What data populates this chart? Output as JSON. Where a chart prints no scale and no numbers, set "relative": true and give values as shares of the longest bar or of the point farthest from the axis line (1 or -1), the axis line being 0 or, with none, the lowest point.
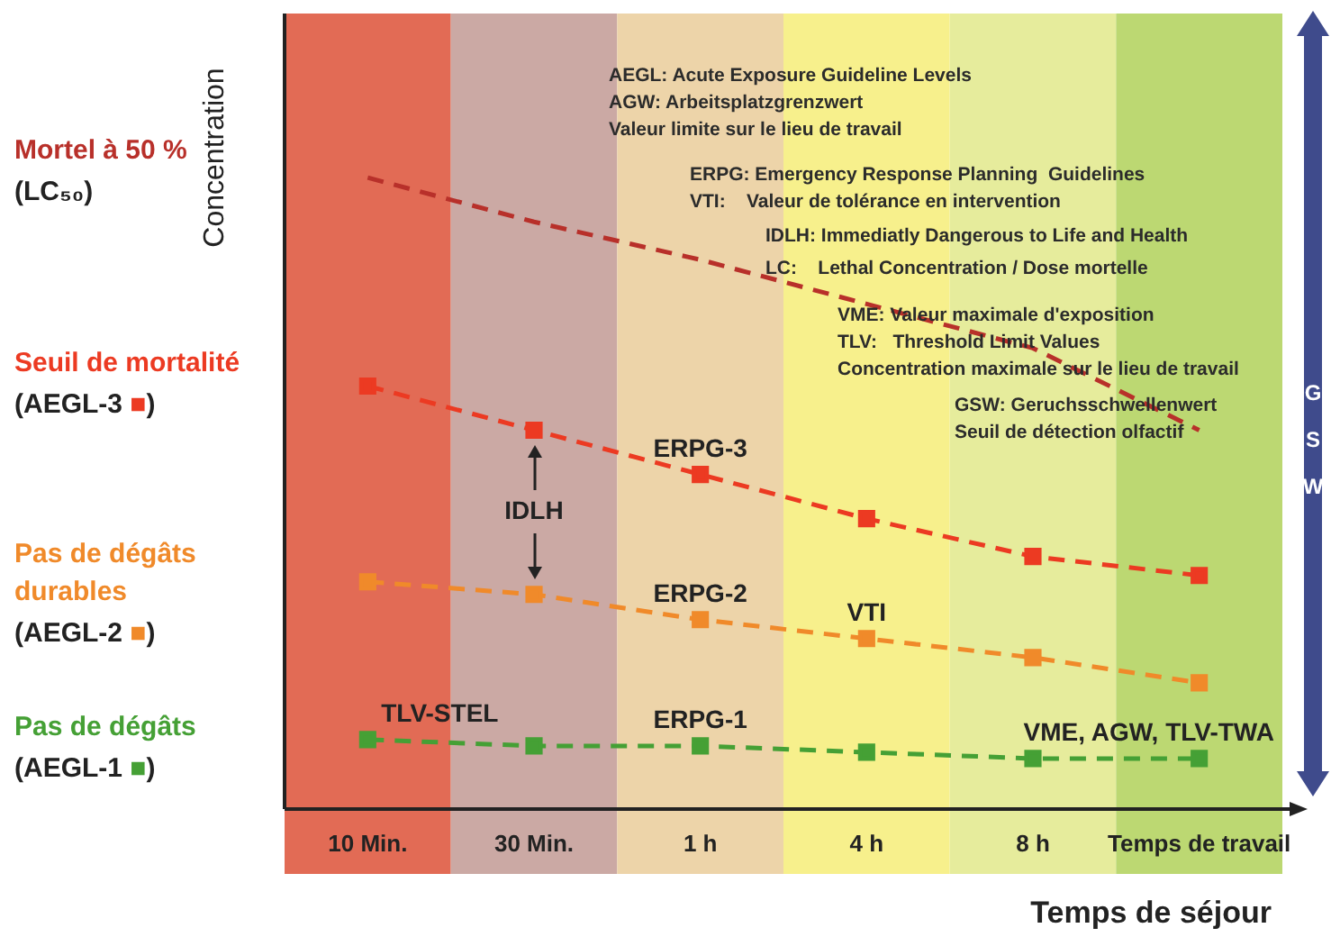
{
  "chart_data": {
    "type": "line",
    "relative": true,
    "ylabel": "Concentration",
    "xlabel": "Temps de séjour",
    "categories": [
      "10 Min.",
      "30 Min.",
      "1 h",
      "4 h",
      "8 h",
      "Temps de travail"
    ],
    "line_style": "dashed",
    "legend": false,
    "series": [
      {
        "name": "Mortel à 50 % (LC₅₀)",
        "color": "#b8302a",
        "marker": "none",
        "values": [
          1,
          0.93,
          0.87,
          0.8,
          0.73,
          0.6
        ]
      },
      {
        "name": "Seuil de mortalité (AEGL-3 ■)",
        "color": "#ec3a22",
        "marker": "square",
        "values": [
          0.67,
          0.6,
          0.53,
          0.46,
          0.4,
          0.37
        ]
      },
      {
        "name": "Pas de dégâts durables (AEGL-2 ■)",
        "color": "#f08a2a",
        "marker": "square",
        "values": [
          0.36,
          0.34,
          0.3,
          0.27,
          0.24,
          0.2
        ]
      },
      {
        "name": "Pas de dégâts (AEGL-1 ■)",
        "color": "#45a035",
        "marker": "square",
        "values": [
          0.11,
          0.1,
          0.1,
          0.09,
          0.08,
          0.08
        ]
      }
    ],
    "bands": [
      {
        "axis": "x",
        "from": "10 Min.",
        "to": "10 Min.",
        "color": "#e26b55"
      },
      {
        "axis": "x",
        "from": "30 Min.",
        "to": "30 Min.",
        "color": "#cba9a4"
      },
      {
        "axis": "x",
        "from": "1 h",
        "to": "1 h",
        "color": "#edd4a9"
      },
      {
        "axis": "x",
        "from": "4 h",
        "to": "4 h",
        "color": "#f7f08c"
      },
      {
        "axis": "x",
        "from": "8 h",
        "to": "8 h",
        "color": "#e6ec9c"
      },
      {
        "axis": "x",
        "from": "Temps de travail",
        "to": "Temps de travail",
        "color": "#bcd872"
      }
    ],
    "annotations": [
      "AEGL: Acute Exposure Guideline Levels",
      "AGW: Arbeitsplatzgrenzwert",
      "Valeur limite sur le lieu de travail",
      "ERPG: Emergency Response Planning  Guidelines",
      "VTI:    Valeur de tolérance en intervention",
      "IDLH: Immediatly Dangerous to Life and Health",
      "LC:    Lethal Concentration / Dose mortelle",
      "VME: Valeur maximale d'exposition",
      "TLV:   Threshold Limit Values",
      "Concentration maximale sur le lieu de travail",
      "GSW: Geruchsschwellenwert",
      "Seuil de détection olfactif",
      "GSW",
      "IDLH",
      {
        "text": "TLV-STEL",
        "x": "10 Min.",
        "y": 0.11
      },
      {
        "text": "ERPG-1",
        "x": "1 h",
        "y": 0.1
      },
      {
        "text": "ERPG-2",
        "x": "1 h",
        "y": 0.3
      },
      {
        "text": "ERPG-3",
        "x": "1 h",
        "y": 0.53
      },
      {
        "text": "VTI",
        "x": "4 h",
        "y": 0.27
      },
      {
        "text": "VME, AGW, TLV-TWA",
        "x": "Temps de travail",
        "y": 0.08
      }
    ]
  }
}
